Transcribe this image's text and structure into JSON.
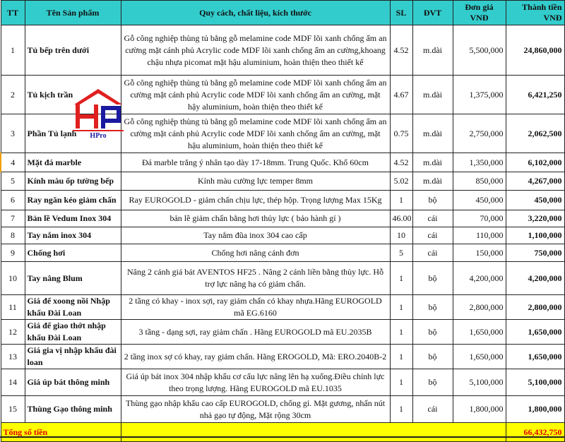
{
  "headers": {
    "tt": "TT",
    "name": "Tên Sản phẩm",
    "spec": "Quy cách, chất liệu, kích thước",
    "qty": "SL",
    "unit": "ĐVT",
    "price": "Đơn giá VNĐ",
    "total": "Thành tiền VNĐ"
  },
  "rows": [
    {
      "tt": "1",
      "name": "Tủ bếp trên dưới",
      "spec": "Gỗ công nghiệp thùng tủ bằng gỗ melamine code MDF lõi xanh chống ẩm an cường mặt cánh phủ Acrylic code MDF lõi xanh chống ẩm an cường,khoang chậu nhựa picomat mặt hậu aluminium, hoàn thiện theo thiết kế",
      "qty": "4.52",
      "unit": "m.dài",
      "price": "5,500,000",
      "total": "24,860,000"
    },
    {
      "tt": "2",
      "name": "Tủ kịch trần",
      "spec": "Gỗ công nghiệp thùng tủ bằng gỗ melamine code MDF lõi xanh chống ẩm an cường mặt cánh phủ Acrylic code MDF lõi xanh chống ẩm an cường, mặt hậy aluminium, hoàn thiện theo thiết kế",
      "qty": "4.67",
      "unit": "m.dài",
      "price": "1,375,000",
      "total": "6,421,250"
    },
    {
      "tt": "3",
      "name": "Phần Tủ lạnh",
      "spec": "Gỗ công nghiệp thùng tủ bằng gỗ melamine code MDF lõi xanh chống ẩm an cường mặt cánh phủ Acrylic code MDF lõi xanh chống ẩm an cường, mặt hậu aluminium, hoàn thiện theo thiết kế",
      "qty": "0.75",
      "unit": "m.dài",
      "price": "2,750,000",
      "total": "2,062,500"
    },
    {
      "tt": "4",
      "name": "Mặt đá marble",
      "spec": "Đá marble trắng ý nhân tạo dày 17-18mm. Trung Quốc. Khổ 60cm",
      "qty": "4.52",
      "unit": "m.dài",
      "price": "1,350,000",
      "total": "6,102,000"
    },
    {
      "tt": "5",
      "name": "Kính màu ốp tường bếp",
      "spec": "Kính màu cường lực temper 8mm",
      "qty": "5.02",
      "unit": "m.dài",
      "price": "850,000",
      "total": "4,267,000"
    },
    {
      "tt": "6",
      "name": "Ray ngăn kéo giảm chấn",
      "spec": "Ray EUROGOLD - giảm chấn chịu lực, thép hộp. Trọng lượng Max 15Kg",
      "qty": "1",
      "unit": "bộ",
      "price": "450,000",
      "total": "450,000"
    },
    {
      "tt": "7",
      "name": "Bản lề Vedum Inox 304",
      "spec": "bản lề giảm chấn bằng hơi thủy lực ( bảo hành gỉ )",
      "qty": "46.00",
      "unit": "cái",
      "price": "70,000",
      "total": "3,220,000"
    },
    {
      "tt": "8",
      "name": "Tay nắm inox 304",
      "spec": "Tay nắm đũa inox 304 cao cấp",
      "qty": "10",
      "unit": "cái",
      "price": "110,000",
      "total": "1,100,000"
    },
    {
      "tt": "9",
      "name": "Chống hơi",
      "spec": "Chống hơi nâng cánh đơn",
      "qty": "5",
      "unit": "cái",
      "price": "150,000",
      "total": "750,000"
    },
    {
      "tt": "10",
      "name": "Tay nâng Blum",
      "spec": "Nâng 2 cánh giá bát  AVENTOS HF25 . Nâng 2 cánh liền bằng thủy lực. Hỗ trợ lực nâng hạ có giảm chấn.",
      "qty": "1",
      "unit": "bộ",
      "price": "4,200,000",
      "total": "4,200,000"
    },
    {
      "tt": "11",
      "name": " Giá để xoong nồi Nhập khẩu Đài Loan",
      "spec": "2 tầng có khay - inox sợi, ray giảm chấn có khay nhựa.Hãng EUROGOLD mã EG.6160",
      "qty": "1",
      "unit": "bộ",
      "price": "2,800,000",
      "total": "2,800,000"
    },
    {
      "tt": "12",
      "name": "Giá để giao thớt nhập khẩu Đài Loan",
      "spec": "3 tầng  - dạng sợi, ray giảm chấn . Hãng EUROGOLD mã EU.2035B",
      "qty": "1",
      "unit": "bộ",
      "price": "1,650,000",
      "total": "1,650,000"
    },
    {
      "tt": "13",
      "name": "Giá gia vị nhập khẩu đài loan",
      "spec": "2 tầng  inox sợ có khay, ray giảm chấn. Hãng EROGOLD, Mã: ERO.2040B-2",
      "qty": "1",
      "unit": "bộ",
      "price": "1,650,000",
      "total": "1,650,000"
    },
    {
      "tt": "14",
      "name": "Giá úp bát thông minh",
      "spec": "Giá úp bát inox 304 nhập khẩu cơ cấu lực nâng lên hạ xuống.Điều chỉnh lực theo trọng lượng. Hãng EUROGOLD mã EU.1035",
      "qty": "1",
      "unit": "bộ",
      "price": "5,100,000",
      "total": "5,100,000"
    },
    {
      "tt": "15",
      "name": "Thùng Gạo thông minh",
      "spec": "Thùng gạo nhập khẩu cao cấp EUROGOLD, chống gỉ. Mặt gương, nhấn nút nhả gạo tự động, Mặt rộng 30cm",
      "qty": "1",
      "unit": "cái",
      "price": "1,800,000",
      "total": "1,800,000"
    }
  ],
  "footer": {
    "label": "Tổng số tiền",
    "total": "66,432,750"
  },
  "logo": {
    "text": "HPro"
  },
  "colors": {
    "header": "#33cccc",
    "total_row": "#ffff00",
    "total_text": "#e00000",
    "logo_red": "#e02020",
    "logo_blue": "#1a1aa0"
  }
}
